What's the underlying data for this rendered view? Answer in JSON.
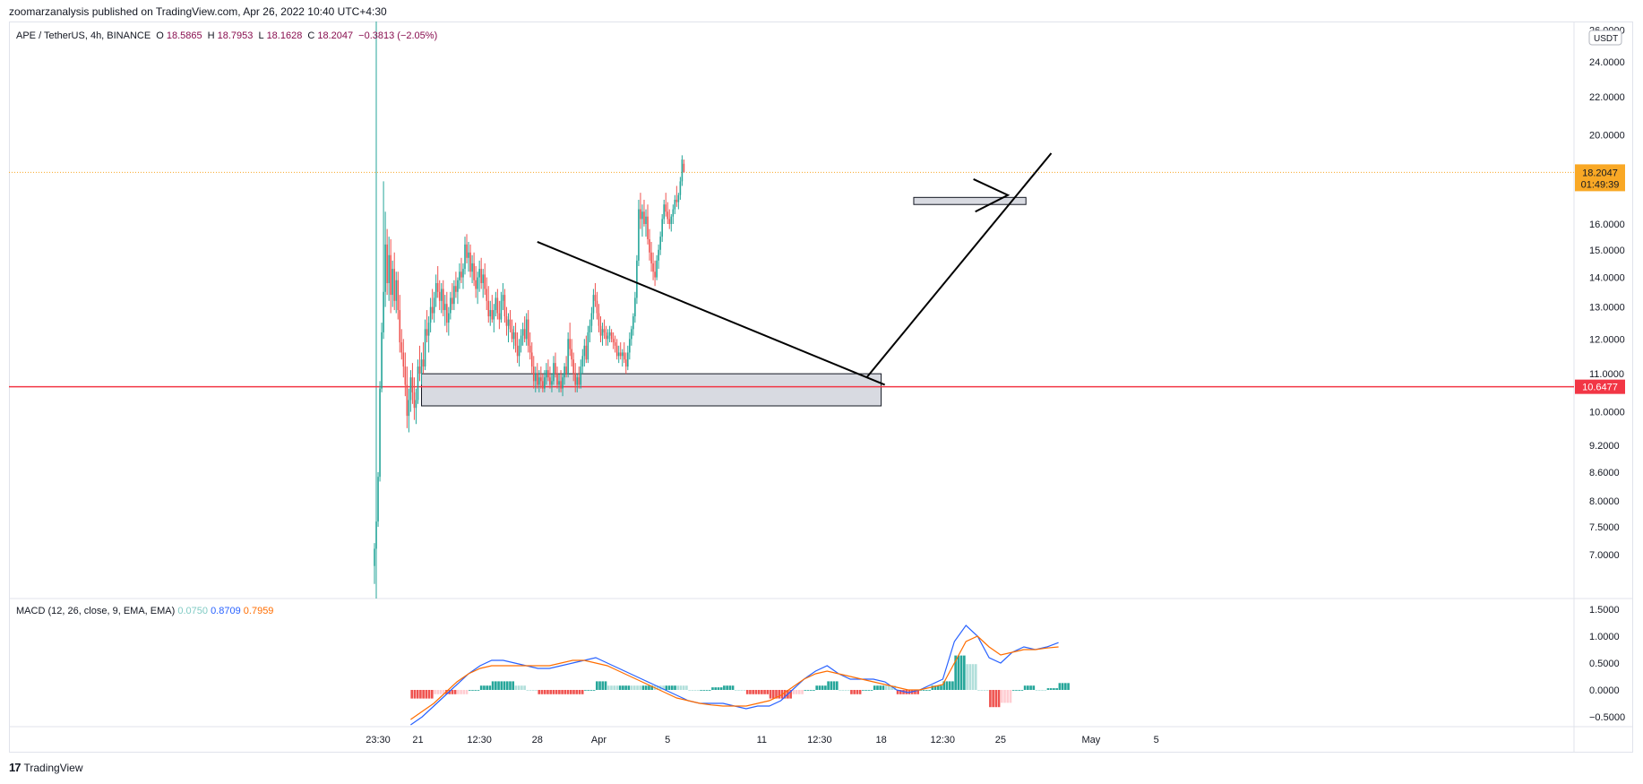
{
  "header": {
    "published": "zoomarzanalysis published on TradingView.com, Apr 26, 2022 10:40 UTC+4:30"
  },
  "legend": {
    "symbol": "APE / TetherUS, 4h, BINANCE",
    "open_label": "O",
    "open": "18.5865",
    "high_label": "H",
    "high": "18.7953",
    "low_label": "L",
    "low": "18.1628",
    "close_label": "C",
    "close": "18.2047",
    "change": "−0.3813 (−2.05%)"
  },
  "macd_legend": {
    "label": "MACD (12, 26, close, 9, EMA, EMA)",
    "hist": "0.0750",
    "macd": "0.8709",
    "signal": "0.7959"
  },
  "footer": {
    "brand": "TradingView",
    "logo": "17"
  },
  "colors": {
    "up": "#26a69a",
    "down": "#ef5350",
    "macd_line": "#2962ff",
    "signal_line": "#ff6d00",
    "hist_up_strong": "#26a69a",
    "hist_up_weak": "#b2dfdb",
    "hist_down_strong": "#ef5350",
    "hist_down_weak": "#ffcdd2",
    "current_price": "#f9a825",
    "support_line": "#f23645"
  },
  "chart_data": [
    {
      "type": "candlestick",
      "title": "APE / TetherUS, 4h, BINANCE",
      "y_unit": "USDT",
      "y_ticks": [
        "26.0000",
        "24.0000",
        "22.0000",
        "20.0000",
        "16.0000",
        "15.0000",
        "14.0000",
        "13.0000",
        "12.0000",
        "11.0000",
        "10.0000",
        "9.2000",
        "8.6000",
        "8.0000",
        "7.5000",
        "7.0000"
      ],
      "y_tick_values": [
        26,
        24,
        22,
        20,
        16,
        15,
        14,
        13,
        12,
        11,
        10,
        9.2,
        8.6,
        8.0,
        7.5,
        7.0
      ],
      "x_ticks": [
        "23:30",
        "21",
        "12:30",
        "28",
        "Apr",
        "5",
        "11",
        "12:30",
        "18",
        "12:30",
        "25",
        "May",
        "5"
      ],
      "x_tick_index": [
        2,
        24,
        58,
        90,
        124,
        162,
        214,
        246,
        280,
        314,
        346,
        396,
        432
      ],
      "current_price": "18.2047",
      "countdown": "01:49:39",
      "support_price": "10.6477",
      "candles": [
        [
          6.8,
          7.2,
          6.5,
          7.1
        ],
        [
          7.1,
          7.7,
          7.0,
          7.6
        ],
        [
          7.6,
          8.6,
          7.5,
          8.5
        ],
        [
          8.5,
          10.8,
          8.4,
          10.6
        ],
        [
          10.6,
          12.5,
          10.5,
          12.2
        ],
        [
          12.2,
          17.8,
          12.0,
          13.5
        ],
        [
          13.5,
          16.5,
          13.0,
          15.2
        ],
        [
          15.2,
          15.8,
          13.4,
          13.8
        ],
        [
          13.8,
          15.5,
          13.2,
          14.8
        ],
        [
          14.8,
          15.4,
          12.8,
          13.4
        ],
        [
          13.4,
          14.6,
          13.0,
          14.3
        ],
        [
          14.3,
          14.9,
          12.9,
          13.2
        ],
        [
          13.2,
          14.2,
          12.8,
          13.9
        ],
        [
          13.9,
          14.2,
          12.6,
          12.9
        ],
        [
          12.9,
          13.4,
          11.6,
          11.9
        ],
        [
          11.9,
          12.3,
          11.4,
          11.6
        ],
        [
          11.6,
          12.0,
          10.9,
          11.2
        ],
        [
          11.2,
          11.6,
          10.4,
          10.7
        ],
        [
          10.7,
          11.2,
          9.6,
          9.9
        ],
        [
          9.9,
          10.6,
          9.5,
          10.3
        ],
        [
          10.3,
          11.1,
          10.0,
          10.9
        ],
        [
          10.9,
          11.3,
          10.2,
          10.5
        ],
        [
          10.5,
          10.9,
          9.8,
          10.1
        ],
        [
          10.1,
          10.6,
          9.7,
          10.3
        ],
        [
          10.3,
          11.4,
          10.2,
          11.2
        ],
        [
          11.2,
          11.8,
          10.8,
          11.0
        ],
        [
          11.0,
          11.6,
          10.7,
          11.4
        ],
        [
          11.4,
          11.9,
          11.0,
          11.2
        ],
        [
          11.2,
          12.6,
          11.1,
          12.3
        ],
        [
          12.3,
          12.9,
          11.9,
          12.1
        ],
        [
          12.1,
          12.7,
          11.6,
          12.5
        ],
        [
          12.5,
          13.3,
          12.2,
          13.0
        ],
        [
          13.0,
          13.6,
          12.6,
          12.8
        ],
        [
          12.8,
          13.5,
          12.5,
          13.3
        ],
        [
          13.3,
          14.1,
          13.0,
          13.8
        ],
        [
          13.8,
          14.4,
          13.3,
          13.5
        ],
        [
          13.5,
          13.9,
          12.9,
          13.2
        ],
        [
          13.2,
          13.8,
          12.8,
          13.6
        ],
        [
          13.6,
          13.9,
          12.7,
          12.9
        ],
        [
          12.9,
          13.4,
          12.4,
          13.1
        ],
        [
          13.1,
          13.5,
          12.2,
          12.5
        ],
        [
          12.5,
          13.0,
          12.1,
          12.8
        ],
        [
          12.8,
          13.5,
          12.6,
          13.3
        ],
        [
          13.3,
          13.8,
          12.9,
          13.1
        ],
        [
          13.1,
          13.9,
          12.9,
          13.7
        ],
        [
          13.7,
          14.2,
          13.3,
          13.5
        ],
        [
          13.5,
          14.0,
          13.1,
          13.9
        ],
        [
          13.9,
          14.5,
          13.6,
          14.2
        ],
        [
          14.2,
          14.7,
          13.8,
          14.0
        ],
        [
          14.0,
          14.5,
          13.6,
          14.3
        ],
        [
          14.3,
          15.5,
          14.1,
          15.2
        ],
        [
          15.2,
          15.6,
          14.5,
          14.7
        ],
        [
          14.7,
          15.3,
          14.2,
          14.9
        ],
        [
          14.9,
          15.2,
          14.0,
          14.2
        ],
        [
          14.2,
          14.8,
          13.8,
          14.5
        ],
        [
          14.5,
          14.9,
          13.7,
          13.9
        ],
        [
          13.9,
          14.4,
          13.3,
          13.6
        ],
        [
          13.6,
          14.2,
          13.1,
          14.0
        ],
        [
          14.0,
          14.6,
          13.5,
          14.3
        ],
        [
          14.3,
          14.7,
          13.6,
          13.8
        ],
        [
          13.8,
          14.3,
          13.3,
          14.1
        ],
        [
          14.1,
          14.5,
          13.4,
          13.6
        ],
        [
          13.6,
          14.0,
          12.9,
          13.2
        ],
        [
          13.2,
          13.7,
          12.5,
          12.7
        ],
        [
          12.7,
          13.2,
          12.4,
          12.9
        ],
        [
          12.9,
          13.4,
          12.5,
          12.6
        ],
        [
          12.6,
          13.1,
          12.2,
          12.9
        ],
        [
          12.9,
          13.5,
          12.7,
          13.3
        ],
        [
          13.3,
          13.6,
          12.6,
          12.8
        ],
        [
          12.8,
          13.2,
          12.3,
          12.6
        ],
        [
          12.6,
          13.5,
          12.5,
          13.2
        ],
        [
          13.2,
          13.8,
          12.9,
          13.4
        ],
        [
          13.4,
          13.6,
          12.5,
          12.7
        ],
        [
          12.7,
          13.0,
          12.1,
          12.4
        ],
        [
          12.4,
          12.8,
          11.9,
          12.6
        ],
        [
          12.6,
          12.9,
          12.2,
          12.3
        ],
        [
          12.3,
          12.6,
          11.9,
          12.0
        ],
        [
          12.0,
          12.4,
          11.7,
          12.2
        ],
        [
          12.2,
          12.5,
          11.6,
          11.8
        ],
        [
          11.8,
          12.2,
          11.3,
          11.5
        ],
        [
          11.5,
          12.0,
          11.2,
          11.8
        ],
        [
          11.8,
          12.3,
          11.6,
          12.1
        ],
        [
          12.1,
          12.5,
          11.8,
          12.3
        ],
        [
          12.3,
          12.7,
          11.9,
          12.0
        ],
        [
          12.0,
          12.8,
          11.8,
          12.6
        ],
        [
          12.6,
          12.9,
          11.6,
          11.8
        ],
        [
          11.8,
          12.2,
          11.4,
          11.6
        ],
        [
          11.6,
          11.9,
          11.0,
          11.2
        ],
        [
          11.2,
          11.5,
          10.6,
          10.8
        ],
        [
          10.8,
          11.2,
          10.5,
          11.0
        ],
        [
          11.0,
          11.3,
          10.6,
          10.7
        ],
        [
          10.7,
          11.1,
          10.5,
          10.9
        ],
        [
          10.9,
          11.2,
          10.6,
          10.8
        ],
        [
          10.8,
          11.0,
          10.5,
          10.6
        ],
        [
          10.6,
          11.1,
          10.5,
          10.9
        ],
        [
          10.9,
          11.3,
          10.7,
          11.1
        ],
        [
          11.1,
          11.4,
          10.8,
          10.9
        ],
        [
          10.9,
          11.2,
          10.6,
          10.7
        ],
        [
          10.7,
          11.0,
          10.5,
          10.8
        ],
        [
          10.8,
          11.5,
          10.7,
          11.3
        ],
        [
          11.3,
          11.6,
          10.9,
          11.0
        ],
        [
          11.0,
          11.2,
          10.6,
          10.7
        ],
        [
          10.7,
          11.0,
          10.5,
          10.8
        ],
        [
          10.8,
          11.1,
          10.5,
          10.6
        ],
        [
          10.6,
          11.0,
          10.4,
          10.9
        ],
        [
          10.9,
          11.3,
          10.7,
          11.2
        ],
        [
          11.2,
          11.5,
          10.9,
          11.0
        ],
        [
          11.0,
          12.2,
          10.9,
          12.0
        ],
        [
          12.0,
          12.5,
          11.5,
          11.7
        ],
        [
          11.7,
          12.0,
          11.2,
          11.4
        ],
        [
          11.4,
          11.6,
          10.8,
          11.0
        ],
        [
          11.0,
          11.3,
          10.5,
          10.7
        ],
        [
          10.7,
          11.0,
          10.5,
          10.9
        ],
        [
          10.9,
          11.2,
          10.6,
          10.7
        ],
        [
          10.7,
          11.4,
          10.6,
          11.2
        ],
        [
          11.2,
          11.7,
          11.0,
          11.5
        ],
        [
          11.5,
          12.0,
          11.2,
          11.8
        ],
        [
          11.8,
          12.1,
          11.3,
          11.4
        ],
        [
          11.4,
          12.4,
          11.3,
          12.2
        ],
        [
          12.2,
          12.6,
          11.9,
          12.4
        ],
        [
          12.4,
          13.0,
          12.2,
          12.8
        ],
        [
          12.8,
          13.6,
          12.6,
          13.4
        ],
        [
          13.4,
          13.8,
          13.0,
          13.2
        ],
        [
          13.2,
          13.5,
          12.6,
          12.8
        ],
        [
          12.8,
          13.1,
          12.2,
          12.4
        ],
        [
          12.4,
          12.7,
          11.9,
          12.1
        ],
        [
          12.1,
          12.5,
          11.8,
          12.3
        ],
        [
          12.3,
          12.6,
          12.0,
          12.2
        ],
        [
          12.2,
          12.4,
          11.8,
          12.0
        ],
        [
          12.0,
          12.3,
          11.8,
          12.1
        ],
        [
          12.1,
          12.4,
          11.9,
          12.2
        ],
        [
          12.2,
          12.3,
          11.9,
          12.0
        ],
        [
          12.0,
          12.2,
          11.7,
          11.9
        ],
        [
          11.9,
          12.1,
          11.6,
          11.8
        ],
        [
          11.8,
          12.0,
          11.4,
          11.5
        ],
        [
          11.5,
          11.8,
          11.3,
          11.6
        ],
        [
          11.6,
          11.9,
          11.4,
          11.5
        ],
        [
          11.5,
          11.7,
          11.2,
          11.6
        ],
        [
          11.6,
          11.9,
          11.3,
          11.4
        ],
        [
          11.4,
          11.6,
          11.0,
          11.2
        ],
        [
          11.2,
          11.8,
          11.1,
          11.6
        ],
        [
          11.6,
          12.2,
          11.4,
          12.0
        ],
        [
          12.0,
          12.4,
          11.8,
          12.3
        ],
        [
          12.3,
          12.8,
          12.1,
          12.7
        ],
        [
          12.7,
          13.5,
          12.5,
          13.3
        ],
        [
          13.3,
          14.8,
          13.1,
          14.6
        ],
        [
          14.6,
          17.0,
          14.4,
          16.6
        ],
        [
          16.6,
          17.3,
          15.8,
          16.2
        ],
        [
          16.2,
          16.8,
          15.5,
          16.5
        ],
        [
          16.5,
          17.0,
          15.9,
          16.0
        ],
        [
          16.0,
          16.6,
          15.5,
          16.3
        ],
        [
          16.3,
          16.8,
          15.2,
          15.4
        ],
        [
          15.4,
          15.8,
          14.6,
          14.9
        ],
        [
          14.9,
          15.3,
          14.2,
          14.5
        ],
        [
          14.5,
          14.9,
          13.9,
          14.2
        ],
        [
          14.2,
          14.6,
          13.7,
          14.0
        ],
        [
          14.0,
          14.8,
          13.9,
          14.6
        ],
        [
          14.6,
          15.2,
          14.3,
          15.0
        ],
        [
          15.0,
          15.7,
          14.8,
          15.5
        ],
        [
          15.5,
          16.4,
          15.3,
          16.2
        ],
        [
          16.2,
          17.0,
          16.0,
          16.8
        ],
        [
          16.8,
          17.3,
          16.3,
          16.5
        ],
        [
          16.5,
          16.9,
          16.0,
          16.2
        ],
        [
          16.2,
          16.6,
          15.8,
          16.0
        ],
        [
          16.0,
          16.4,
          15.7,
          16.3
        ],
        [
          16.3,
          16.8,
          16.0,
          16.6
        ],
        [
          16.6,
          17.2,
          16.4,
          17.0
        ],
        [
          17.0,
          17.6,
          16.7,
          16.9
        ],
        [
          16.9,
          17.3,
          16.6,
          17.2
        ],
        [
          17.2,
          18.0,
          17.0,
          17.8
        ],
        [
          17.8,
          19.0,
          17.6,
          18.8
        ],
        [
          18.6,
          18.8,
          18.2,
          18.2
        ]
      ],
      "annotations": [
        {
          "type": "zone",
          "label": "support zone",
          "y_range": [
            10.15,
            11.0
          ],
          "x_index": [
            26,
            280
          ]
        },
        {
          "type": "zone",
          "label": "resistance zone",
          "y_range": [
            16.8,
            17.1
          ],
          "x_index": [
            298,
            360
          ]
        },
        {
          "type": "trendline",
          "label": "descending trendline",
          "from": [
            90,
            15.3
          ],
          "to": [
            282,
            10.7
          ]
        },
        {
          "type": "trendline",
          "label": "ascending trendline",
          "from": [
            272,
            10.9
          ],
          "to": [
            374,
            19.1
          ]
        },
        {
          "type": "triangle",
          "label": "pennant",
          "points": [
            [
              331,
              17.9
            ],
            [
              350,
              17.2
            ],
            [
              332,
              16.5
            ]
          ]
        }
      ]
    },
    {
      "type": "macd",
      "title": "MACD (12, 26, close, 9, EMA, EMA)",
      "y_ticks": [
        "1.5000",
        "1.0000",
        "0.5000",
        "0.0000",
        "−0.5000"
      ],
      "y_tick_values": [
        1.5,
        1.0,
        0.5,
        0.0,
        -0.5
      ],
      "macd": [
        -0.65,
        -0.5,
        -0.3,
        -0.1,
        0.1,
        0.3,
        0.45,
        0.55,
        0.55,
        0.5,
        0.45,
        0.4,
        0.4,
        0.45,
        0.5,
        0.55,
        0.6,
        0.5,
        0.4,
        0.3,
        0.2,
        0.1,
        0.0,
        -0.1,
        -0.2,
        -0.25,
        -0.25,
        -0.25,
        -0.3,
        -0.35,
        -0.3,
        -0.3,
        -0.2,
        0.0,
        0.2,
        0.35,
        0.45,
        0.3,
        0.2,
        0.2,
        0.2,
        0.15,
        0.0,
        -0.05,
        0.0,
        0.1,
        0.2,
        0.9,
        1.2,
        1.0,
        0.6,
        0.5,
        0.7,
        0.8,
        0.75,
        0.8,
        0.88
      ],
      "signal": [
        -0.55,
        -0.4,
        -0.25,
        -0.05,
        0.15,
        0.3,
        0.4,
        0.45,
        0.45,
        0.45,
        0.45,
        0.45,
        0.45,
        0.5,
        0.55,
        0.55,
        0.5,
        0.45,
        0.35,
        0.25,
        0.15,
        0.05,
        -0.05,
        -0.15,
        -0.2,
        -0.25,
        -0.28,
        -0.3,
        -0.3,
        -0.3,
        -0.25,
        -0.2,
        -0.1,
        0.05,
        0.2,
        0.3,
        0.35,
        0.3,
        0.25,
        0.2,
        0.15,
        0.1,
        0.05,
        0.0,
        0.0,
        0.05,
        0.1,
        0.5,
        0.9,
        1.0,
        0.8,
        0.65,
        0.7,
        0.75,
        0.75,
        0.78,
        0.8
      ]
    }
  ]
}
